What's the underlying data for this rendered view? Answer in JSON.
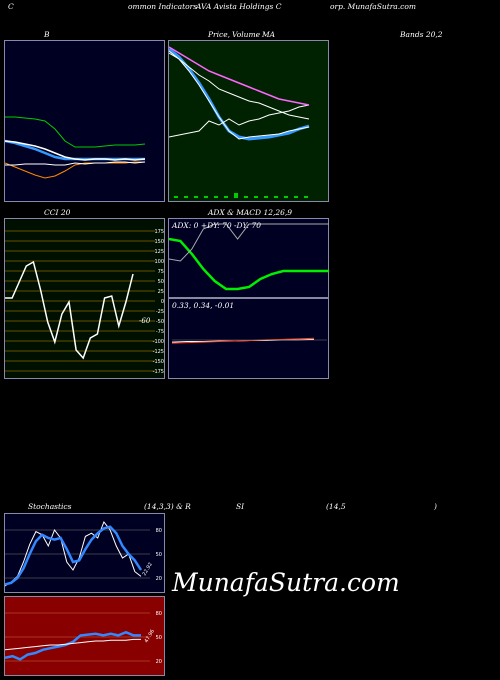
{
  "header": {
    "left": "C",
    "title_a": "ommon  Indicators",
    "title_b": "AVA Avista  Holdings C",
    "title_c": "orp. MunafaSutra.com"
  },
  "labels": {
    "bb": "B",
    "price": "Price,",
    "volume": "Volume",
    "ma": "MA",
    "bands": "Bands 20,2",
    "cci": "CCI 20",
    "adx": "ADX  & MACD 12,26,9",
    "stoch": "Stochastics",
    "stoch_params": "(14,3,3) & R",
    "si": "SI",
    "rsi_params": "(14,5",
    "rsi_close": ")"
  },
  "brand": "MunafaSutra.com",
  "colors": {
    "bg_navy": "#000022",
    "bg_green": "#002200",
    "bg_red": "#880000",
    "cci_bg": "#001000",
    "blue": "#3399ff",
    "green": "#00cc00",
    "orange": "#ff8800"
  },
  "chart_data": [
    {
      "type": "line",
      "panel": "bollinger-bands",
      "series": [
        {
          "values": [
            76,
            76,
            77,
            78,
            80,
            88,
            100,
            106,
            106,
            106,
            105,
            104,
            104,
            104,
            103
          ]
        },
        {
          "values": [
            100,
            102,
            105,
            108,
            112,
            116,
            118,
            118,
            118,
            118,
            118,
            118,
            118,
            118,
            118
          ]
        },
        {
          "values": [
            122,
            126,
            130,
            134,
            137,
            135,
            130,
            124,
            122,
            122,
            122,
            122,
            122,
            121,
            121
          ]
        },
        {
          "values": [
            100,
            101,
            103,
            105,
            108,
            112,
            116,
            118,
            119,
            118,
            118,
            119,
            118,
            119,
            118
          ]
        },
        {
          "values": [
            124,
            124,
            123,
            123,
            123,
            124,
            124,
            122,
            123,
            122,
            122,
            121,
            121,
            122,
            121
          ]
        }
      ]
    },
    {
      "type": "line",
      "panel": "price-ma",
      "series": [
        {
          "values": [
            8,
            16,
            28,
            42,
            58,
            76,
            90,
            96,
            98,
            97,
            96,
            94,
            92,
            88,
            85
          ]
        },
        {
          "values": [
            10,
            18,
            30,
            44,
            60,
            76,
            90,
            98,
            96,
            95,
            94,
            93,
            90,
            88,
            86
          ]
        },
        {
          "values": [
            96,
            94,
            92,
            90,
            80,
            84,
            78,
            84,
            80,
            78,
            74,
            72,
            70,
            66,
            64
          ]
        },
        {
          "values": [
            12,
            18,
            26,
            34,
            40,
            48,
            52,
            56,
            60,
            62,
            66,
            70,
            74,
            76,
            78
          ]
        },
        {
          "values": [
            6,
            12,
            18,
            24,
            30,
            34,
            38,
            42,
            46,
            50,
            54,
            58,
            60,
            62,
            64
          ]
        }
      ]
    },
    {
      "type": "line",
      "panel": "cci",
      "yticks": [
        "175",
        "150",
        "125",
        "100",
        "75",
        "50",
        "25",
        "0",
        "-25",
        "-50",
        "-75",
        "-100",
        "-125",
        "-150",
        "-175"
      ],
      "last_value": "-60",
      "values": [
        0,
        0,
        -40,
        -80,
        -90,
        -20,
        60,
        110,
        40,
        10,
        130,
        150,
        100,
        90,
        0,
        -5,
        70,
        10,
        -60
      ]
    },
    {
      "type": "line",
      "panel": "adx",
      "readout": "ADX: 0  +DY: 70  -DY: 70",
      "series": [
        {
          "values": [
            20,
            22,
            35,
            50,
            62,
            70,
            70,
            68,
            60,
            55,
            52,
            52,
            52,
            52,
            52
          ]
        },
        {
          "values": [
            40,
            42,
            30,
            10,
            5,
            5,
            20,
            5,
            5,
            5,
            5,
            5,
            5,
            5,
            5
          ]
        }
      ]
    },
    {
      "type": "line",
      "panel": "macd",
      "readout": "0.33,  0.34,  -0.01",
      "series": [
        {
          "values": [
            0.33,
            0.34,
            0.34,
            0.35,
            0.35,
            0.36,
            0.36,
            0.37,
            0.37,
            0.38
          ]
        },
        {
          "values": [
            0.31,
            0.32,
            0.33,
            0.34,
            0.35,
            0.36,
            0.37,
            0.38,
            0.39,
            0.4
          ]
        }
      ]
    },
    {
      "type": "line",
      "panel": "stochastics",
      "yticks": [
        "80",
        "50",
        "20"
      ],
      "last_label": "22.92",
      "series": [
        {
          "values": [
            10,
            15,
            22,
            40,
            62,
            78,
            74,
            60,
            80,
            70,
            40,
            30,
            45,
            72,
            76,
            70,
            90,
            80,
            60,
            45,
            50,
            28,
            22
          ]
        },
        {
          "values": [
            12,
            14,
            20,
            32,
            50,
            66,
            74,
            70,
            68,
            70,
            56,
            40,
            42,
            56,
            68,
            76,
            82,
            84,
            76,
            60,
            50,
            42,
            30
          ]
        }
      ]
    },
    {
      "type": "line",
      "panel": "rsi",
      "yticks": [
        "80",
        "50",
        "20"
      ],
      "last_label": "47.96",
      "series": [
        {
          "values": [
            24,
            26,
            22,
            28,
            30,
            34,
            36,
            38,
            40,
            44,
            52,
            53,
            54,
            52,
            54,
            52,
            56,
            52,
            52
          ]
        },
        {
          "values": [
            34,
            35,
            36,
            37,
            38,
            39,
            40,
            40,
            41,
            42,
            43,
            44,
            45,
            45,
            46,
            46,
            46,
            47,
            47
          ]
        }
      ]
    }
  ]
}
